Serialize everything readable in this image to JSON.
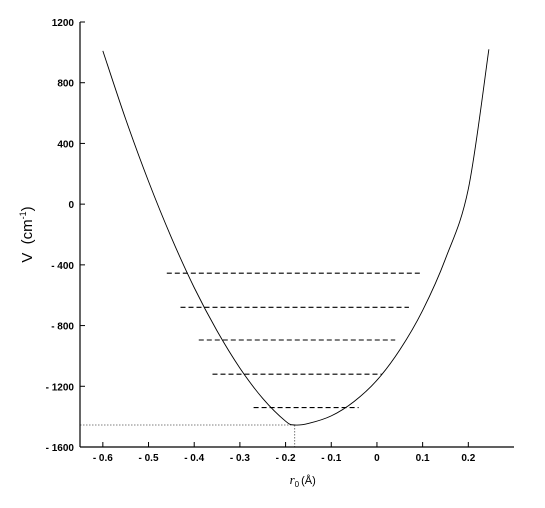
{
  "chart_data": {
    "type": "line",
    "xlabel": "r",
    "xlabel_subscript": "0",
    "xlabel_unit": "(Å)",
    "ylabel": "V",
    "ylabel_unit_open": "(cm",
    "ylabel_unit_sup": "-1",
    "ylabel_unit_close": ")",
    "xlim": [
      -0.65,
      0.3
    ],
    "ylim": [
      -1600,
      1200
    ],
    "x_ticks": [
      -0.6,
      -0.5,
      -0.4,
      -0.3,
      -0.2,
      -0.1,
      0,
      0.1,
      0.2
    ],
    "x_tick_labels": [
      "- 0.6",
      "- 0.5",
      "- 0.4",
      "- 0.3",
      "- 0.2",
      "- 0.1",
      "0",
      "0.1",
      "0.2"
    ],
    "y_ticks": [
      -1600,
      -1200,
      -800,
      -400,
      0,
      400,
      800,
      1200
    ],
    "y_tick_labels": [
      "- 1600",
      "- 1200",
      "- 800",
      "- 400",
      "0",
      "400",
      "800",
      "1200"
    ],
    "grid": false,
    "legend": "none",
    "potential_curve": {
      "minimum": {
        "x": -0.18,
        "y": -1455
      },
      "points": [
        {
          "x": -0.6,
          "y": 1010
        },
        {
          "x": -0.55,
          "y": 560
        },
        {
          "x": -0.5,
          "y": 150
        },
        {
          "x": -0.45,
          "y": -220
        },
        {
          "x": -0.4,
          "y": -550
        },
        {
          "x": -0.35,
          "y": -835
        },
        {
          "x": -0.3,
          "y": -1080
        },
        {
          "x": -0.25,
          "y": -1280
        },
        {
          "x": -0.2,
          "y": -1430
        },
        {
          "x": -0.18,
          "y": -1455
        },
        {
          "x": -0.15,
          "y": -1445
        },
        {
          "x": -0.1,
          "y": -1395
        },
        {
          "x": -0.05,
          "y": -1300
        },
        {
          "x": 0,
          "y": -1160
        },
        {
          "x": 0.05,
          "y": -960
        },
        {
          "x": 0.1,
          "y": -700
        },
        {
          "x": 0.15,
          "y": -360
        },
        {
          "x": 0.2,
          "y": 100
        },
        {
          "x": 0.245,
          "y": 1020
        }
      ]
    },
    "energy_levels": [
      {
        "y": -1340,
        "x_left": -0.27,
        "x_right": -0.04
      },
      {
        "y": -1120,
        "x_left": -0.36,
        "x_right": 0.01
      },
      {
        "y": -895,
        "x_left": -0.39,
        "x_right": 0.04
      },
      {
        "y": -680,
        "x_left": -0.43,
        "x_right": 0.07
      },
      {
        "y": -455,
        "x_left": -0.46,
        "x_right": 0.1
      }
    ],
    "minimum_markers": {
      "horizontal_y": -1455,
      "horizontal_from_x": -0.65,
      "horizontal_to_x": -0.18,
      "vertical_x": -0.18
    },
    "colors": {
      "curve": "#000000",
      "levels": "#000000",
      "markers": "#555555",
      "axes": "#000000"
    }
  }
}
